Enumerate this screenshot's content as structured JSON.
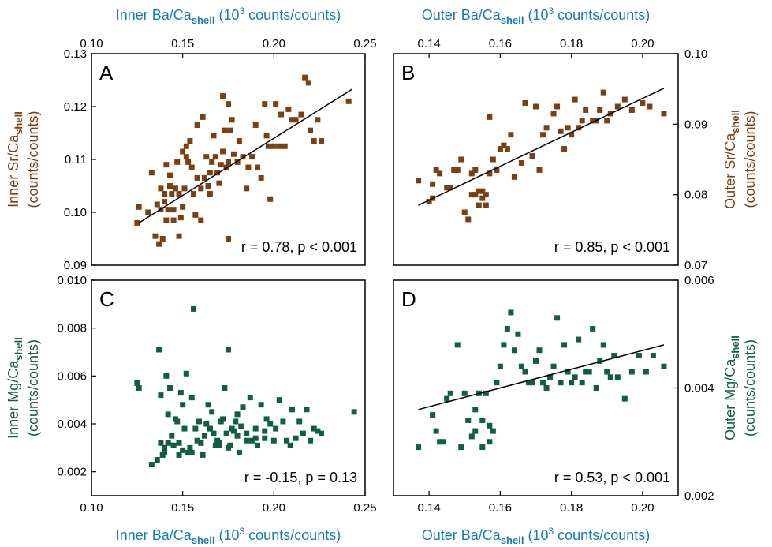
{
  "chart_data": [
    {
      "type": "scatter",
      "panel": "A",
      "xlabel_main": "Inner Ba/Ca",
      "xlabel_sub": "shell",
      "xlabel_units": "(10",
      "xlabel_units_sup": "3",
      "xlabel_units_end": " counts/counts)",
      "ylabel_main": "Inner Sr/Ca",
      "ylabel_sub": "shell",
      "ylabel_units": "(counts/counts)",
      "xlim": [
        0.1,
        0.25
      ],
      "ylim": [
        0.09,
        0.13
      ],
      "xticks": [
        "0.10",
        "0.15",
        "0.20",
        "0.25"
      ],
      "yticks": [
        "0.09",
        "0.10",
        "0.11",
        "0.12",
        "0.13"
      ],
      "stat": "r = 0.78, p < 0.001",
      "color": "#7a3f12",
      "fit": [
        [
          0.126,
          0.098
        ],
        [
          0.243,
          0.1233
        ]
      ],
      "x": [
        0.125,
        0.126,
        0.131,
        0.133,
        0.135,
        0.136,
        0.137,
        0.138,
        0.138,
        0.139,
        0.14,
        0.14,
        0.141,
        0.141,
        0.142,
        0.143,
        0.143,
        0.144,
        0.145,
        0.145,
        0.146,
        0.147,
        0.148,
        0.148,
        0.149,
        0.15,
        0.15,
        0.151,
        0.152,
        0.152,
        0.153,
        0.154,
        0.155,
        0.156,
        0.157,
        0.158,
        0.158,
        0.16,
        0.16,
        0.161,
        0.162,
        0.163,
        0.164,
        0.165,
        0.166,
        0.167,
        0.168,
        0.169,
        0.17,
        0.171,
        0.172,
        0.173,
        0.174,
        0.175,
        0.175,
        0.176,
        0.177,
        0.178,
        0.18,
        0.181,
        0.183,
        0.185,
        0.186,
        0.188,
        0.19,
        0.191,
        0.193,
        0.195,
        0.196,
        0.197,
        0.198,
        0.2,
        0.201,
        0.203,
        0.204,
        0.206,
        0.208,
        0.21,
        0.212,
        0.215,
        0.217,
        0.219,
        0.22,
        0.222,
        0.224,
        0.226,
        0.241,
        0.175,
        0.165,
        0.172
      ],
      "y": [
        0.098,
        0.101,
        0.1,
        0.1075,
        0.0955,
        0.1015,
        0.094,
        0.1005,
        0.1045,
        0.095,
        0.1035,
        0.102,
        0.109,
        0.0985,
        0.1005,
        0.107,
        0.105,
        0.1035,
        0.1005,
        0.0985,
        0.1045,
        0.1095,
        0.0955,
        0.1035,
        0.099,
        0.1115,
        0.101,
        0.1045,
        0.1105,
        0.1125,
        0.1095,
        0.1135,
        0.1085,
        0.1035,
        0.0995,
        0.1065,
        0.1165,
        0.0985,
        0.1045,
        0.118,
        0.1065,
        0.1105,
        0.105,
        0.1035,
        0.1095,
        0.1145,
        0.1105,
        0.1075,
        0.1055,
        0.109,
        0.1115,
        0.1155,
        0.1085,
        0.1095,
        0.1205,
        0.1155,
        0.1175,
        0.111,
        0.1095,
        0.1135,
        0.1105,
        0.1045,
        0.1085,
        0.1105,
        0.1165,
        0.1085,
        0.1065,
        0.1205,
        0.1145,
        0.1125,
        0.1025,
        0.1125,
        0.1205,
        0.1125,
        0.1185,
        0.1125,
        0.1195,
        0.1175,
        0.1175,
        0.1185,
        0.1255,
        0.1245,
        0.1155,
        0.1135,
        0.1175,
        0.1135,
        0.121,
        0.095,
        0.1075,
        0.122
      ]
    },
    {
      "type": "scatter",
      "panel": "B",
      "xlabel_main": "Outer Ba/Ca",
      "xlabel_sub": "shell",
      "xlabel_units": "(10",
      "xlabel_units_sup": "3",
      "xlabel_units_end": " counts/counts)",
      "ylabel_main": "Outer Sr/Ca",
      "ylabel_sub": "shell",
      "ylabel_units": "(counts/counts)",
      "xlim": [
        0.13,
        0.21
      ],
      "ylim": [
        0.07,
        0.1
      ],
      "xticks": [
        "0.14",
        "0.16",
        "0.18",
        "0.20"
      ],
      "yticks": [
        "0.07",
        "0.08",
        "0.09",
        "0.10"
      ],
      "stat": "r = 0.85, p < 0.001",
      "color": "#7a3f12",
      "fit": [
        [
          0.137,
          0.0785
        ],
        [
          0.206,
          0.0951
        ]
      ],
      "x": [
        0.137,
        0.14,
        0.141,
        0.141,
        0.142,
        0.143,
        0.145,
        0.146,
        0.147,
        0.148,
        0.149,
        0.15,
        0.151,
        0.152,
        0.152,
        0.153,
        0.153,
        0.154,
        0.154,
        0.155,
        0.155,
        0.156,
        0.156,
        0.157,
        0.157,
        0.158,
        0.159,
        0.16,
        0.161,
        0.162,
        0.163,
        0.164,
        0.166,
        0.167,
        0.169,
        0.17,
        0.171,
        0.172,
        0.173,
        0.175,
        0.176,
        0.177,
        0.178,
        0.179,
        0.18,
        0.181,
        0.182,
        0.183,
        0.184,
        0.186,
        0.187,
        0.188,
        0.189,
        0.19,
        0.191,
        0.193,
        0.195,
        0.197,
        0.2,
        0.202,
        0.206
      ],
      "y": [
        0.082,
        0.079,
        0.0815,
        0.0795,
        0.0835,
        0.083,
        0.081,
        0.081,
        0.0835,
        0.0835,
        0.085,
        0.0775,
        0.0765,
        0.08,
        0.083,
        0.08,
        0.0835,
        0.0805,
        0.0785,
        0.0805,
        0.0795,
        0.08,
        0.0785,
        0.091,
        0.083,
        0.085,
        0.0835,
        0.0865,
        0.087,
        0.0865,
        0.0885,
        0.0825,
        0.0845,
        0.093,
        0.0855,
        0.0925,
        0.0835,
        0.0885,
        0.0895,
        0.0915,
        0.0925,
        0.089,
        0.0865,
        0.0895,
        0.0885,
        0.0935,
        0.0895,
        0.0905,
        0.092,
        0.0905,
        0.0905,
        0.092,
        0.0945,
        0.0905,
        0.0915,
        0.0925,
        0.0935,
        0.092,
        0.093,
        0.0925,
        0.0915
      ]
    },
    {
      "type": "scatter",
      "panel": "C",
      "xlabel_main": "Inner Ba/Ca",
      "xlabel_sub": "shell",
      "xlabel_units": "(10",
      "xlabel_units_sup": "3",
      "xlabel_units_end": " counts/counts)",
      "ylabel_main": "Inner Mg/Ca",
      "ylabel_sub": "shell",
      "ylabel_units": "(counts/counts)",
      "xlim": [
        0.1,
        0.25
      ],
      "ylim": [
        0.001,
        0.01
      ],
      "xticks": [
        "0.10",
        "0.15",
        "0.20",
        "0.25"
      ],
      "yticks": [
        "0.002",
        "0.004",
        "0.006",
        "0.008",
        "0.010"
      ],
      "stat": "r = -0.15, p = 0.13",
      "color": "#115f3f",
      "x": [
        0.125,
        0.126,
        0.133,
        0.136,
        0.137,
        0.138,
        0.139,
        0.14,
        0.141,
        0.142,
        0.142,
        0.143,
        0.144,
        0.145,
        0.146,
        0.147,
        0.148,
        0.149,
        0.15,
        0.15,
        0.151,
        0.152,
        0.153,
        0.154,
        0.155,
        0.156,
        0.157,
        0.158,
        0.159,
        0.16,
        0.161,
        0.162,
        0.163,
        0.164,
        0.165,
        0.166,
        0.167,
        0.168,
        0.169,
        0.17,
        0.171,
        0.172,
        0.173,
        0.174,
        0.175,
        0.176,
        0.177,
        0.178,
        0.179,
        0.18,
        0.181,
        0.182,
        0.183,
        0.185,
        0.187,
        0.188,
        0.19,
        0.191,
        0.193,
        0.195,
        0.196,
        0.198,
        0.2,
        0.201,
        0.203,
        0.205,
        0.207,
        0.209,
        0.21,
        0.212,
        0.214,
        0.216,
        0.218,
        0.22,
        0.222,
        0.224,
        0.226,
        0.244,
        0.138,
        0.14,
        0.145,
        0.148,
        0.155,
        0.16,
        0.165,
        0.17,
        0.175,
        0.18,
        0.185,
        0.19,
        0.195
      ],
      "y": [
        0.0057,
        0.0055,
        0.0023,
        0.0025,
        0.0071,
        0.0052,
        0.0027,
        0.0028,
        0.006,
        0.0032,
        0.0044,
        0.0055,
        0.0035,
        0.0031,
        0.0042,
        0.0041,
        0.0027,
        0.0053,
        0.0048,
        0.0029,
        0.0038,
        0.0061,
        0.0028,
        0.003,
        0.0051,
        0.0088,
        0.0038,
        0.0033,
        0.0041,
        0.0032,
        0.0027,
        0.0035,
        0.004,
        0.0048,
        0.0038,
        0.0045,
        0.0036,
        0.0031,
        0.0033,
        0.0032,
        0.0041,
        0.0042,
        0.0055,
        0.0036,
        0.0071,
        0.0031,
        0.0038,
        0.0037,
        0.0041,
        0.0044,
        0.0028,
        0.0039,
        0.0047,
        0.0036,
        0.0051,
        0.0033,
        0.0038,
        0.0031,
        0.0048,
        0.0037,
        0.0042,
        0.004,
        0.0033,
        0.0038,
        0.005,
        0.0041,
        0.0033,
        0.0031,
        0.0046,
        0.0034,
        0.0041,
        0.0036,
        0.0046,
        0.0033,
        0.0038,
        0.0037,
        0.0036,
        0.0045,
        0.0032,
        0.003,
        0.0031,
        0.0032,
        0.0028,
        0.0032,
        0.0038,
        0.0031,
        0.003,
        0.0035,
        0.0033,
        0.0034,
        0.0034
      ]
    },
    {
      "type": "scatter",
      "panel": "D",
      "xlabel_main": "Outer Ba/Ca",
      "xlabel_sub": "shell",
      "xlabel_units": "(10",
      "xlabel_units_sup": "3",
      "xlabel_units_end": " counts/counts)",
      "ylabel_main": "Outer Mg/Ca",
      "ylabel_sub": "shell",
      "ylabel_units": "(counts/counts)",
      "xlim": [
        0.13,
        0.21
      ],
      "ylim": [
        0.002,
        0.006
      ],
      "xticks": [
        "0.14",
        "0.16",
        "0.18",
        "0.20"
      ],
      "yticks": [
        "0.002",
        "0.004",
        "0.006"
      ],
      "stat": "r = 0.53, p < 0.001",
      "color": "#115f3f",
      "fit": [
        [
          0.137,
          0.0036
        ],
        [
          0.206,
          0.0048
        ]
      ],
      "x": [
        0.137,
        0.141,
        0.142,
        0.143,
        0.144,
        0.145,
        0.146,
        0.148,
        0.149,
        0.15,
        0.151,
        0.152,
        0.153,
        0.154,
        0.155,
        0.156,
        0.157,
        0.158,
        0.159,
        0.16,
        0.161,
        0.162,
        0.163,
        0.164,
        0.165,
        0.166,
        0.167,
        0.168,
        0.169,
        0.17,
        0.171,
        0.172,
        0.173,
        0.174,
        0.175,
        0.176,
        0.177,
        0.178,
        0.179,
        0.18,
        0.181,
        0.182,
        0.183,
        0.184,
        0.185,
        0.186,
        0.187,
        0.188,
        0.189,
        0.19,
        0.191,
        0.192,
        0.193,
        0.195,
        0.197,
        0.199,
        0.201,
        0.203,
        0.206,
        0.153,
        0.155,
        0.157
      ],
      "y": [
        0.0029,
        0.0035,
        0.0032,
        0.003,
        0.003,
        0.0038,
        0.0039,
        0.0048,
        0.0029,
        0.0039,
        0.0034,
        0.0031,
        0.0036,
        0.0039,
        0.0029,
        0.0039,
        0.0033,
        0.0032,
        0.0041,
        0.0044,
        0.0048,
        0.0051,
        0.0054,
        0.0047,
        0.005,
        0.0044,
        0.0043,
        0.0041,
        0.0041,
        0.0045,
        0.0047,
        0.0041,
        0.004,
        0.0042,
        0.0044,
        0.0053,
        0.0041,
        0.0048,
        0.0043,
        0.0041,
        0.0042,
        0.0049,
        0.0041,
        0.0043,
        0.0043,
        0.0051,
        0.004,
        0.0045,
        0.0048,
        0.0043,
        0.0042,
        0.0046,
        0.0042,
        0.0038,
        0.0043,
        0.0046,
        0.0043,
        0.0046,
        0.0044,
        0.0032,
        0.0034,
        0.003
      ]
    }
  ]
}
